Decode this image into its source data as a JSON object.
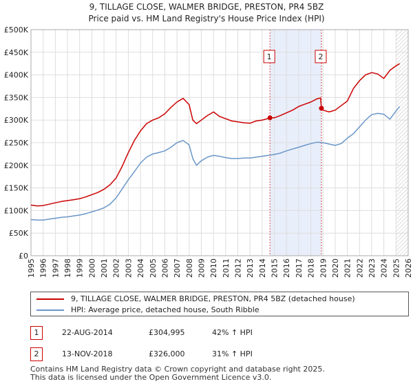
{
  "title_line1": "9, TILLAGE CLOSE, WALMER BRIDGE, PRESTON, PR4 5BZ",
  "title_line2": "Price paid vs. HM Land Registry's House Price Index (HPI)",
  "colors": {
    "property": "#cc0000",
    "hpi": "#6a96c8",
    "grid": "#dddddd",
    "shade": "#e8eefa",
    "hatch": "#bbbbbb"
  },
  "chart_data": {
    "type": "line",
    "title": "9, TILLAGE CLOSE, WALMER BRIDGE, PRESTON, PR4 5BZ",
    "subtitle": "Price paid vs. HM Land Registry's House Price Index (HPI)",
    "xlabel": "",
    "ylabel": "",
    "xlim": [
      1995,
      2026
    ],
    "ylim": [
      0,
      500000
    ],
    "x_ticks": [
      "1995",
      "1996",
      "1997",
      "1998",
      "1999",
      "2000",
      "2001",
      "2002",
      "2003",
      "2004",
      "2005",
      "2006",
      "2007",
      "2008",
      "2009",
      "2010",
      "2011",
      "2012",
      "2013",
      "2014",
      "2015",
      "2016",
      "2017",
      "2018",
      "2019",
      "2020",
      "2021",
      "2022",
      "2023",
      "2024",
      "2025",
      "2026"
    ],
    "y_ticks": [
      {
        "value": 0,
        "label": "£0"
      },
      {
        "value": 50000,
        "label": "£50K"
      },
      {
        "value": 100000,
        "label": "£100K"
      },
      {
        "value": 150000,
        "label": "£150K"
      },
      {
        "value": 200000,
        "label": "£200K"
      },
      {
        "value": 250000,
        "label": "£250K"
      },
      {
        "value": 300000,
        "label": "£300K"
      },
      {
        "value": 350000,
        "label": "£350K"
      },
      {
        "value": 400000,
        "label": "£400K"
      },
      {
        "value": 450000,
        "label": "£450K"
      },
      {
        "value": 500000,
        "label": "£500K"
      }
    ],
    "grid": true,
    "shaded_region": [
      2014.64,
      2018.87
    ],
    "hatched_from": 2025.0,
    "series": [
      {
        "name": "9, TILLAGE CLOSE, WALMER BRIDGE, PRESTON, PR4 5BZ (detached house)",
        "color": "#cc0000",
        "x": [
          1995,
          1995.5,
          1996,
          1996.5,
          1997,
          1997.5,
          1998,
          1998.5,
          1999,
          1999.5,
          2000,
          2000.5,
          2001,
          2001.5,
          2002,
          2002.5,
          2003,
          2003.5,
          2004,
          2004.5,
          2005,
          2005.5,
          2006,
          2006.5,
          2007,
          2007.5,
          2008,
          2008.3,
          2008.6,
          2009,
          2009.5,
          2010,
          2010.5,
          2011,
          2011.5,
          2012,
          2012.5,
          2013,
          2013.5,
          2014,
          2014.3,
          2014.64,
          2015,
          2015.5,
          2016,
          2016.5,
          2017,
          2017.5,
          2018,
          2018.5,
          2018.8,
          2018.87,
          2019,
          2019.5,
          2020,
          2020.5,
          2021,
          2021.5,
          2022,
          2022.5,
          2023,
          2023.5,
          2024,
          2024.5,
          2025,
          2025.3
        ],
        "values": [
          112000,
          110000,
          111000,
          114000,
          117000,
          120000,
          122000,
          124000,
          126000,
          130000,
          135000,
          140000,
          147000,
          157000,
          172000,
          198000,
          228000,
          255000,
          276000,
          292000,
          300000,
          305000,
          314000,
          328000,
          340000,
          348000,
          334000,
          300000,
          292000,
          300000,
          310000,
          318000,
          308000,
          303000,
          298000,
          296000,
          294000,
          293000,
          298000,
          300000,
          302000,
          304995,
          305000,
          310000,
          316000,
          322000,
          330000,
          335000,
          340000,
          347000,
          349000,
          326000,
          322000,
          318000,
          322000,
          332000,
          342000,
          370000,
          387000,
          400000,
          405000,
          402000,
          392000,
          410000,
          420000,
          425000
        ]
      },
      {
        "name": "HPI: Average price, detached house, South Ribble",
        "color": "#6a96c8",
        "x": [
          1995,
          1995.5,
          1996,
          1996.5,
          1997,
          1997.5,
          1998,
          1998.5,
          1999,
          1999.5,
          2000,
          2000.5,
          2001,
          2001.5,
          2002,
          2002.5,
          2003,
          2003.5,
          2004,
          2004.5,
          2005,
          2005.5,
          2006,
          2006.5,
          2007,
          2007.5,
          2008,
          2008.3,
          2008.6,
          2009,
          2009.5,
          2010,
          2010.5,
          2011,
          2011.5,
          2012,
          2012.5,
          2013,
          2013.5,
          2014,
          2014.5,
          2015,
          2015.5,
          2016,
          2016.5,
          2017,
          2017.5,
          2018,
          2018.5,
          2019,
          2019.5,
          2020,
          2020.5,
          2021,
          2021.5,
          2022,
          2022.5,
          2023,
          2023.5,
          2024,
          2024.5,
          2025,
          2025.3
        ],
        "values": [
          80000,
          79000,
          79000,
          81000,
          83000,
          85000,
          86000,
          88000,
          90000,
          93000,
          97000,
          101000,
          106000,
          114000,
          128000,
          148000,
          168000,
          186000,
          205000,
          218000,
          225000,
          228000,
          232000,
          240000,
          250000,
          255000,
          245000,
          215000,
          200000,
          210000,
          218000,
          222000,
          220000,
          217000,
          215000,
          215000,
          216000,
          216000,
          218000,
          220000,
          222000,
          224000,
          227000,
          232000,
          236000,
          240000,
          244000,
          248000,
          251000,
          250000,
          247000,
          244000,
          248000,
          260000,
          270000,
          285000,
          300000,
          312000,
          315000,
          313000,
          302000,
          320000,
          330000
        ]
      }
    ],
    "annotations": [
      {
        "id": "1",
        "x": 2014.64,
        "value": 304995
      },
      {
        "id": "2",
        "x": 2018.87,
        "value": 326000
      }
    ]
  },
  "legend": {
    "property_label": "9, TILLAGE CLOSE, WALMER BRIDGE, PRESTON, PR4 5BZ (detached house)",
    "hpi_label": "HPI: Average price, detached house, South Ribble"
  },
  "transactions": [
    {
      "id": "1",
      "date": "22-AUG-2014",
      "price": "£304,995",
      "hpi": "42% ↑ HPI"
    },
    {
      "id": "2",
      "date": "13-NOV-2018",
      "price": "£326,000",
      "hpi": "31% ↑ HPI"
    }
  ],
  "footer": {
    "line1": "Contains HM Land Registry data © Crown copyright and database right 2025.",
    "line2": "This data is licensed under the Open Government Licence v3.0."
  }
}
